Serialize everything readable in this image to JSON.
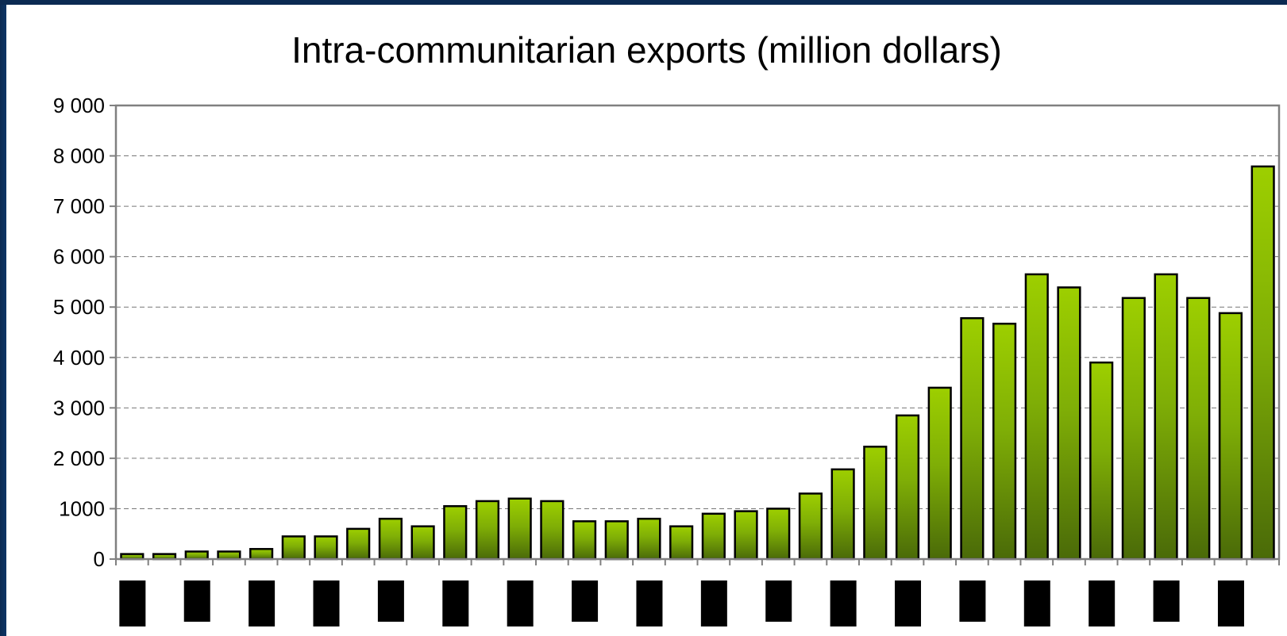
{
  "chart_data": {
    "type": "bar",
    "title": "Intra-communitarian exports (million dollars)",
    "xlabel": "",
    "ylabel": "",
    "ylim": [
      0,
      9000
    ],
    "yticks": [
      0,
      1000,
      2000,
      3000,
      4000,
      5000,
      6000,
      7000,
      8000,
      9000
    ],
    "ytick_labels": [
      "0",
      "1000",
      "2 000",
      "3 000",
      "4 000",
      "5 000",
      "6 000",
      "7 000",
      "8 000",
      "9 000"
    ],
    "grid": true,
    "values": [
      100,
      100,
      150,
      150,
      200,
      450,
      450,
      600,
      800,
      650,
      1050,
      1150,
      1200,
      1150,
      750,
      750,
      800,
      650,
      900,
      950,
      1000,
      1300,
      1780,
      2230,
      2850,
      3400,
      4780,
      4670,
      5650,
      5390,
      3900,
      5180,
      5650,
      5180,
      4880,
      7790
    ],
    "colors": {
      "bar_top": "#9dcf00",
      "bar_bottom": "#4a6a08",
      "bar_stroke": "#000000",
      "grid": "#777777",
      "axis": "#808080"
    }
  }
}
